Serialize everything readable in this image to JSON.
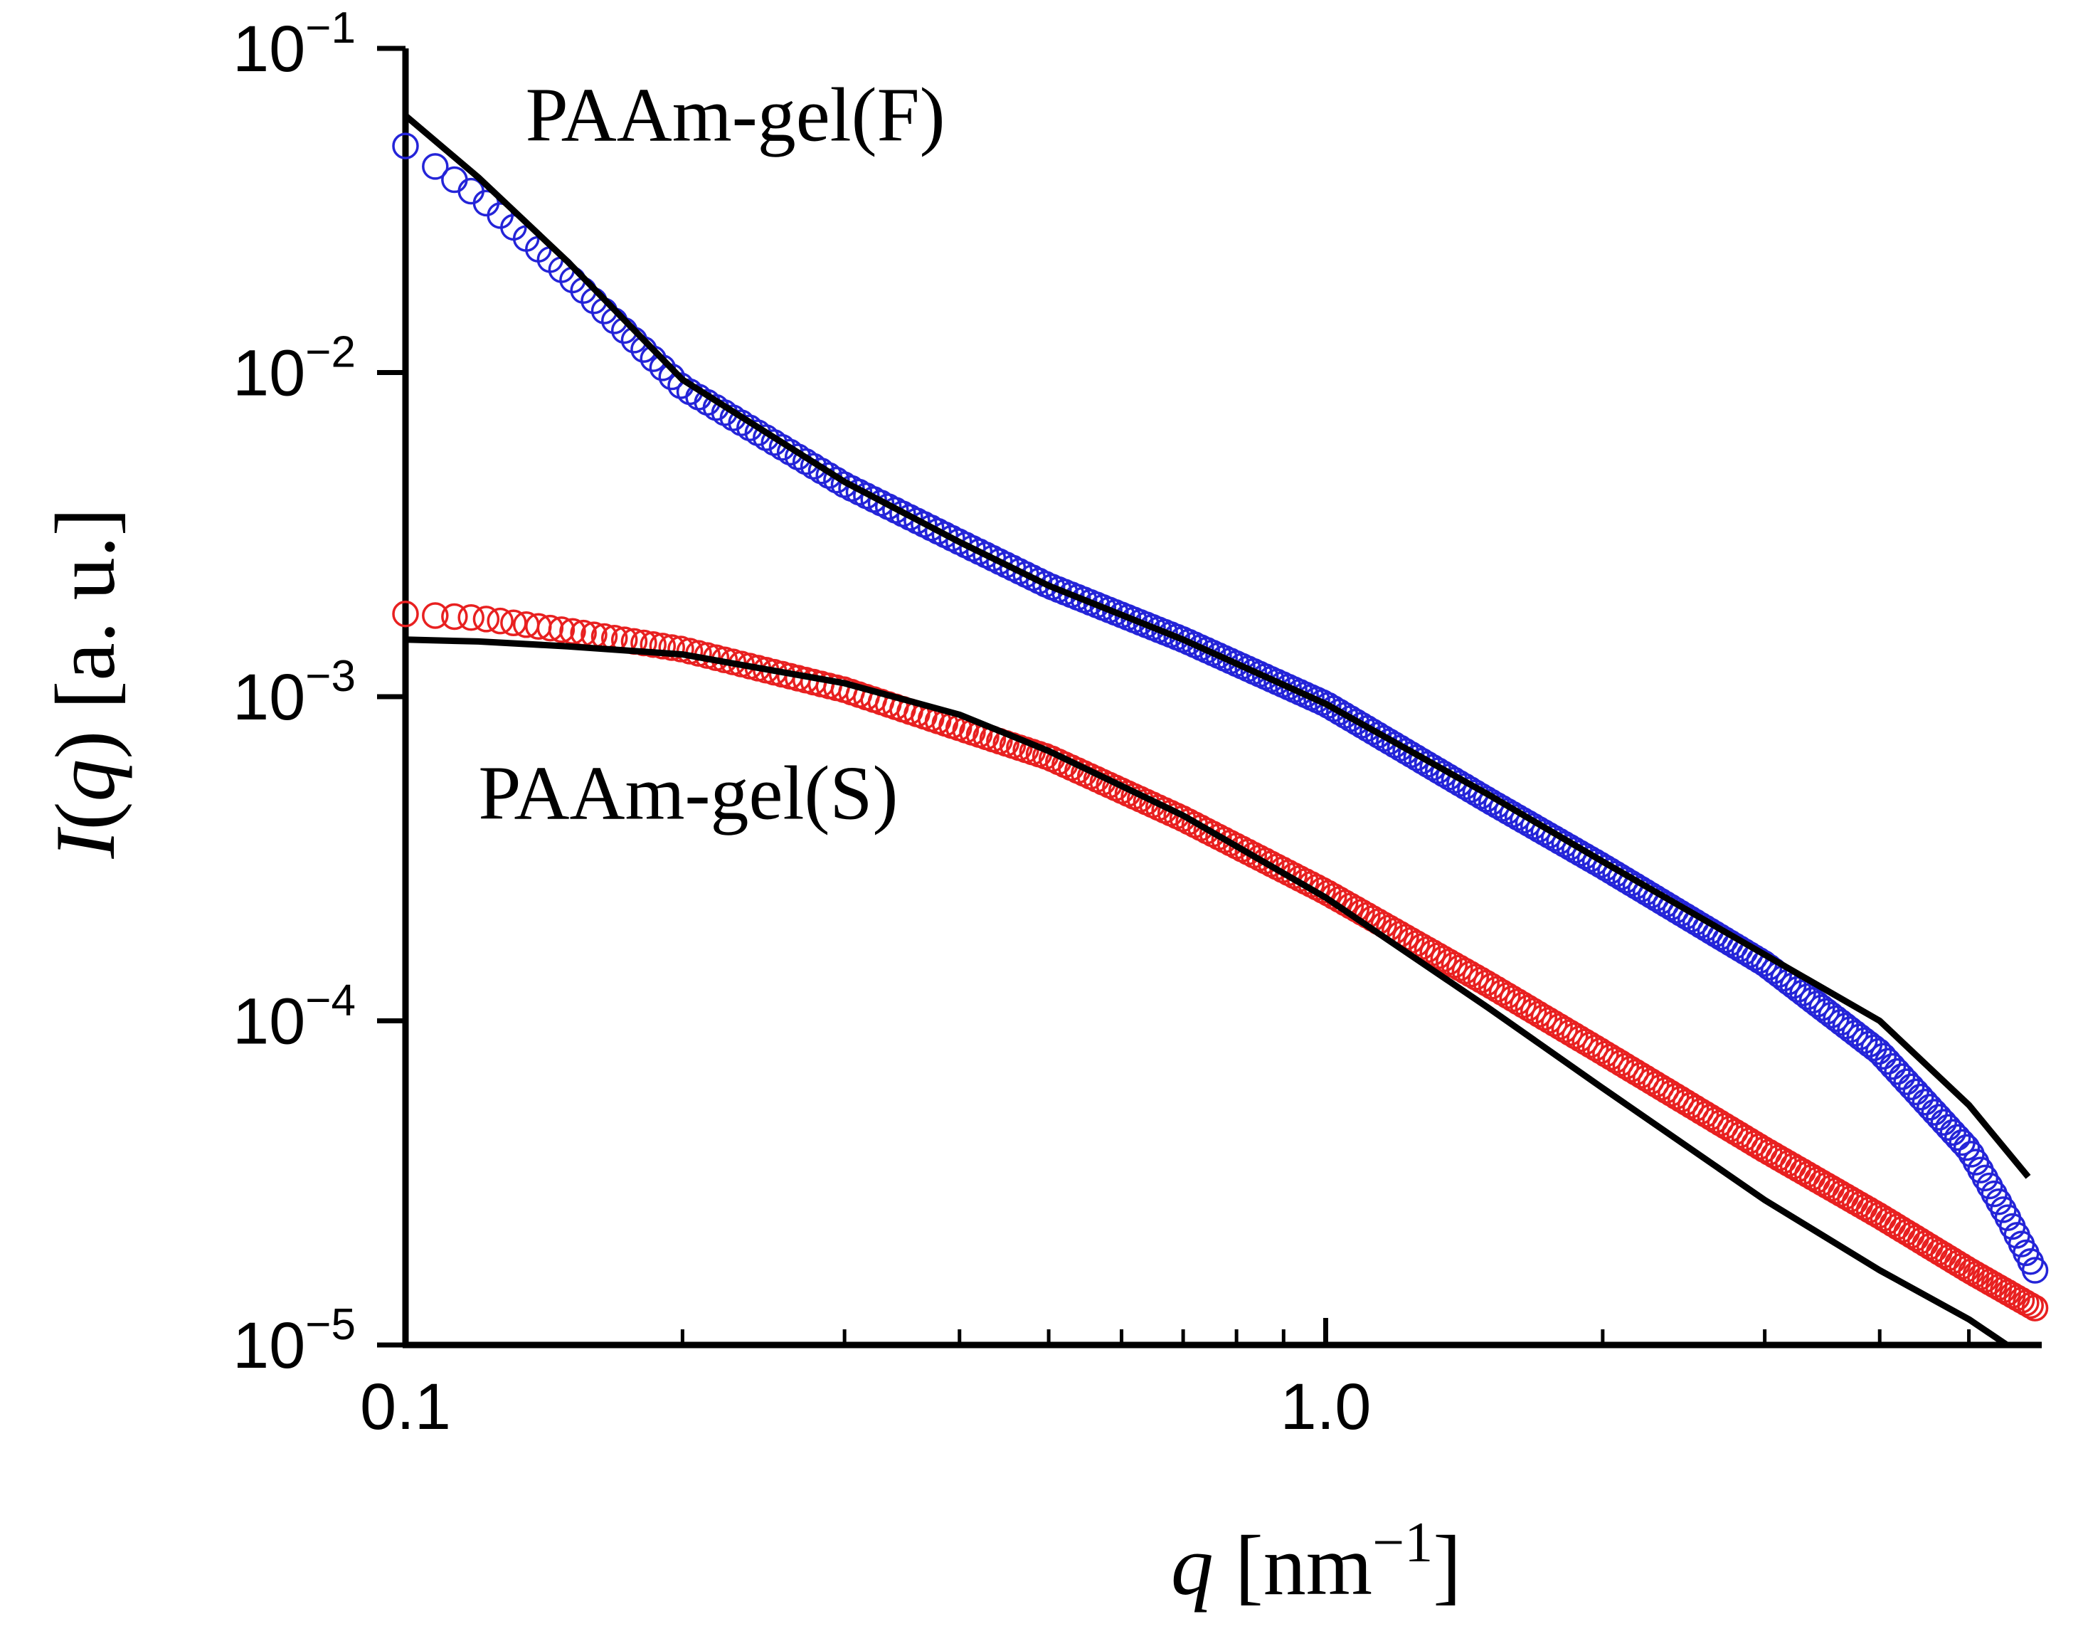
{
  "chart_data": {
    "type": "scatter",
    "title": "",
    "xscale": "log",
    "yscale": "log",
    "xlim": [
      0.1,
      6.0
    ],
    "ylim": [
      1e-05,
      0.1
    ],
    "xlabel": {
      "var": "q",
      "unit_open": " [nm",
      "unit_sup": "−1",
      "unit_close": "]"
    },
    "ylabel": {
      "var": "I",
      "paren_open": "(",
      "arg": "q",
      "paren_close": ")",
      "unit": " [a. u.]"
    },
    "xticks": [
      {
        "value": 0.1,
        "label": "0.1"
      },
      {
        "value": 1.0,
        "label": "1.0"
      }
    ],
    "x_minor_ticks": [
      0.2,
      0.3,
      0.4,
      0.5,
      0.6,
      0.7,
      0.8,
      0.9,
      2,
      3,
      4,
      5
    ],
    "yticks": [
      {
        "value": 0.1,
        "base": "10",
        "exp": "−1"
      },
      {
        "value": 0.01,
        "base": "10",
        "exp": "−2"
      },
      {
        "value": 0.001,
        "base": "10",
        "exp": "−3"
      },
      {
        "value": 0.0001,
        "base": "10",
        "exp": "−4"
      },
      {
        "value": 1e-05,
        "base": "10",
        "exp": "−5"
      }
    ],
    "series": [
      {
        "name": "PAAm-gel(F)",
        "marker": "open-circle",
        "color": "#2424d8",
        "fit_color": "#000000",
        "x": [
          0.1,
          0.12,
          0.15,
          0.2,
          0.3,
          0.4,
          0.5,
          0.7,
          1.0,
          1.5,
          2.0,
          3.0,
          4.0,
          5.0,
          5.5,
          5.9
        ],
        "y": [
          0.05,
          0.035,
          0.02,
          0.009,
          0.0045,
          0.003,
          0.0022,
          0.0015,
          0.00095,
          0.00048,
          0.0003,
          0.00015,
          8e-05,
          4e-05,
          2.5e-05,
          1.7e-05
        ],
        "fit_x": [
          0.1,
          0.12,
          0.15,
          0.2,
          0.3,
          0.4,
          0.5,
          0.7,
          1.0,
          1.5,
          2.0,
          3.0,
          4.0,
          5.0,
          5.8
        ],
        "fit_y": [
          0.062,
          0.04,
          0.022,
          0.0095,
          0.0046,
          0.003,
          0.0022,
          0.0015,
          0.00095,
          0.0005,
          0.00031,
          0.00016,
          0.0001,
          5.5e-05,
          3.3e-05
        ]
      },
      {
        "name": "PAAm-gel(S)",
        "marker": "open-circle",
        "color": "#e82020",
        "fit_color": "#000000",
        "x": [
          0.1,
          0.12,
          0.15,
          0.2,
          0.3,
          0.4,
          0.5,
          0.7,
          1.0,
          1.5,
          2.0,
          3.0,
          4.0,
          5.0,
          5.9
        ],
        "y": [
          0.0018,
          0.00175,
          0.0016,
          0.0014,
          0.00105,
          0.0008,
          0.00065,
          0.00042,
          0.00025,
          0.00013,
          8e-05,
          4e-05,
          2.5e-05,
          1.7e-05,
          1.3e-05
        ],
        "fit_x": [
          0.1,
          0.12,
          0.15,
          0.2,
          0.3,
          0.4,
          0.5,
          0.7,
          1.0,
          1.5,
          2.0,
          3.0,
          4.0,
          5.0,
          5.5
        ],
        "fit_y": [
          0.0015,
          0.00148,
          0.00143,
          0.00135,
          0.0011,
          0.00088,
          0.00068,
          0.00043,
          0.00024,
          0.00011,
          6.2e-05,
          2.8e-05,
          1.7e-05,
          1.2e-05,
          1e-05
        ]
      }
    ],
    "annotations": [
      {
        "text": "PAAm-gel(F)",
        "x": 0.135,
        "y": 0.052
      },
      {
        "text": "PAAm-gel(S)",
        "x": 0.12,
        "y": 0.00042
      }
    ]
  }
}
